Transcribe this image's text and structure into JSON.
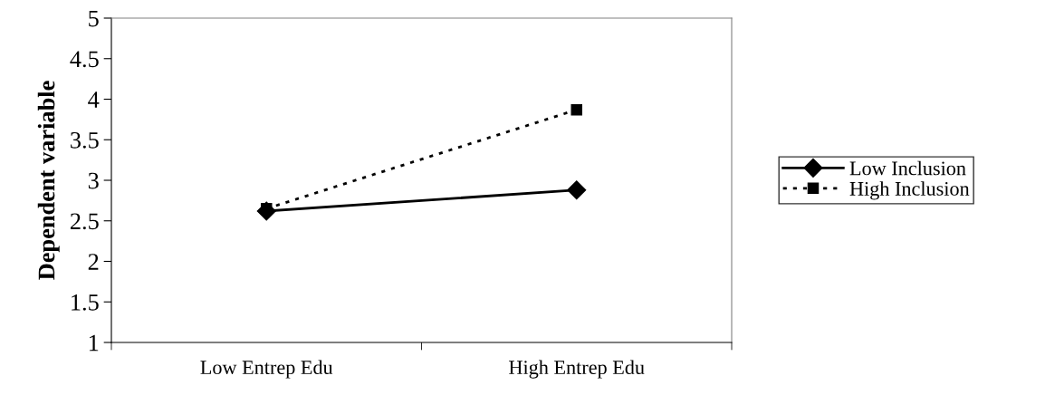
{
  "chart_data": {
    "type": "line",
    "ylabel": "Dependent variable",
    "categories": [
      "Low Entrep Edu",
      "High Entrep Edu"
    ],
    "series": [
      {
        "name": "Low Inclusion",
        "color": "#000000",
        "values": [
          2.62,
          2.88
        ],
        "marker": "diamond",
        "line_style": "solid"
      },
      {
        "name": "High Inclusion",
        "color": "#000000",
        "values": [
          2.65,
          3.87
        ],
        "marker": "square",
        "line_style": "dotted"
      }
    ],
    "ylim": [
      1,
      5
    ],
    "yticks": [
      1,
      1.5,
      2,
      2.5,
      3,
      3.5,
      4,
      4.5,
      5
    ],
    "grid": false,
    "legend": "right"
  }
}
